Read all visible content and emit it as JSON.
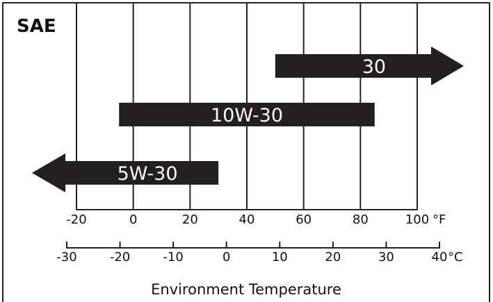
{
  "title": "SAE",
  "fahrenheit_axis": {
    "ticks": [
      -20,
      0,
      20,
      40,
      60,
      80,
      100
    ],
    "tick_labels": [
      "-20",
      "0",
      "20",
      "40",
      "60",
      "80",
      "100"
    ],
    "unit": "°F"
  },
  "celsius_axis": {
    "ticks": [
      -30,
      -20,
      -10,
      0,
      10,
      20,
      30,
      40
    ],
    "tick_labels": [
      "-30",
      "-20",
      "-10",
      "0",
      "10",
      "20",
      "30",
      "40"
    ],
    "unit": "°C"
  },
  "xlabel": "Environment Temperature",
  "grades": [
    {
      "label": "30",
      "from_f": 50,
      "to_f": null,
      "open_end": "high"
    },
    {
      "label": "10W-30",
      "from_f": -5,
      "to_f": 85,
      "open_end": "none"
    },
    {
      "label": "5W-30",
      "from_f": null,
      "to_f": 30,
      "open_end": "low"
    }
  ],
  "colors": {
    "bar": "#231f20",
    "frame": "#231f20",
    "bar_text": "#ffffff"
  }
}
